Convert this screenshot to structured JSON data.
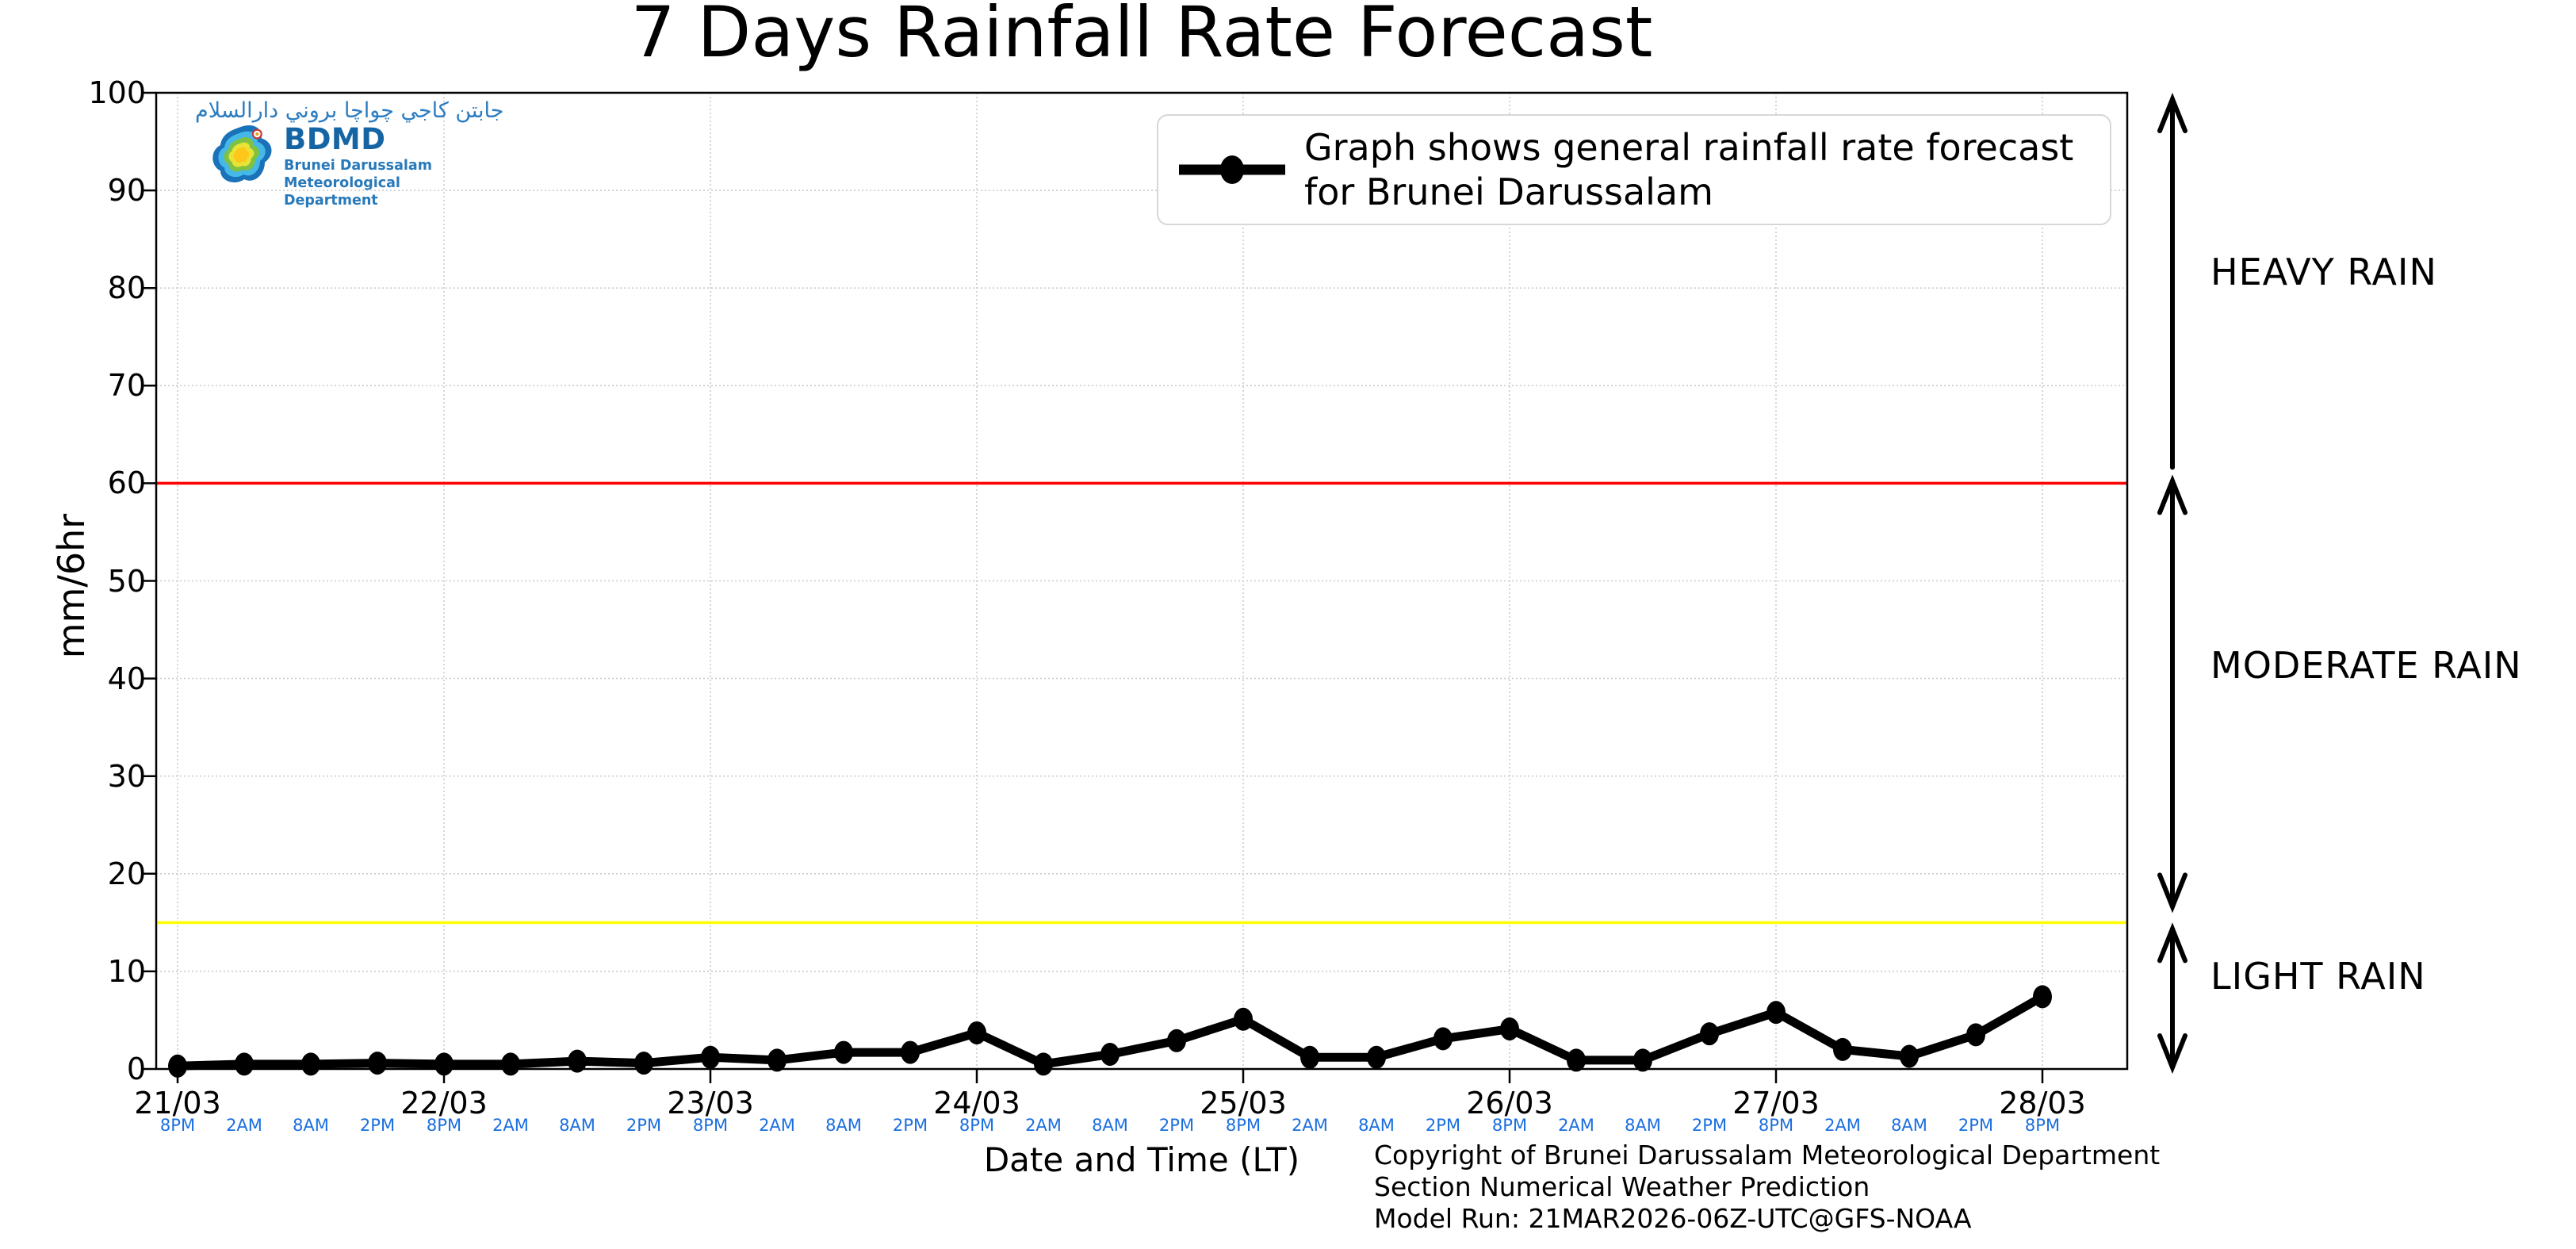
{
  "title": "7 Days Rainfall Rate Forecast",
  "logo": {
    "jawi_text": "جابتن كاجي چواچا بروني دارالسلام",
    "acronym": "BDMD",
    "org_lines": [
      "Brunei Darussalam",
      "Meteorological",
      "Department"
    ]
  },
  "legend": {
    "line1": "Graph shows general rainfall rate forecast",
    "line2": "for Brunei Darussalam"
  },
  "axes": {
    "ylabel": "mm/6hr",
    "xlabel": "Date and Time (LT)",
    "y_ticks": [
      0,
      10,
      20,
      30,
      40,
      50,
      60,
      70,
      80,
      90,
      100
    ],
    "date_ticks": [
      "21/03",
      "22/03",
      "23/03",
      "24/03",
      "25/03",
      "26/03",
      "27/03",
      "28/03"
    ],
    "time_cycle": [
      "8PM",
      "2AM",
      "8AM",
      "2PM"
    ],
    "time_label_color": "#1a6fe0"
  },
  "thresholds": [
    {
      "name": "heavy-rain-threshold",
      "value": 60,
      "color": "#ff0000"
    },
    {
      "name": "light-rain-threshold",
      "value": 15,
      "color": "#ffff00"
    }
  ],
  "zones": [
    {
      "label": "HEAVY RAIN",
      "range_mm_6hr": [
        60,
        100
      ]
    },
    {
      "label": "MODERATE RAIN",
      "range_mm_6hr": [
        15,
        60
      ]
    },
    {
      "label": "LIGHT RAIN",
      "range_mm_6hr": [
        0,
        15
      ]
    }
  ],
  "footer": {
    "copyright_lines": [
      "Copyright of Brunei Darussalam Meteorological Department",
      "Section Numerical Weather Prediction",
      "Model Run: 21MAR2026-06Z-UTC@GFS-NOAA"
    ]
  },
  "chart_data": {
    "type": "line",
    "title": "7 Days Rainfall Rate Forecast",
    "xlabel": "Date and Time (LT)",
    "ylabel": "mm/6hr",
    "ylim": [
      0,
      100
    ],
    "grid": true,
    "legend_position": "upper center",
    "line_color": "#000000",
    "categories": [
      "21/03 8PM",
      "21/03 2AM",
      "21/03 8AM",
      "21/03 2PM",
      "22/03 8PM",
      "22/03 2AM",
      "22/03 8AM",
      "22/03 2PM",
      "23/03 8PM",
      "23/03 2AM",
      "23/03 8AM",
      "23/03 2PM",
      "24/03 8PM",
      "24/03 2AM",
      "24/03 8AM",
      "24/03 2PM",
      "25/03 8PM",
      "25/03 2AM",
      "25/03 8AM",
      "25/03 2PM",
      "26/03 8PM",
      "26/03 2AM",
      "26/03 8AM",
      "26/03 2PM",
      "27/03 8PM",
      "27/03 2AM",
      "27/03 8AM",
      "27/03 2PM",
      "28/03 8PM"
    ],
    "series": [
      {
        "name": "Graph shows general rainfall rate forecast for Brunei Darussalam",
        "values": [
          0.3,
          0.5,
          0.5,
          0.6,
          0.5,
          0.5,
          0.8,
          0.6,
          1.2,
          0.9,
          1.7,
          1.7,
          3.7,
          0.5,
          1.5,
          2.9,
          5.1,
          1.2,
          1.2,
          3.1,
          4.1,
          0.9,
          0.9,
          3.6,
          5.8,
          2.0,
          1.3,
          3.5,
          7.4
        ]
      }
    ]
  }
}
